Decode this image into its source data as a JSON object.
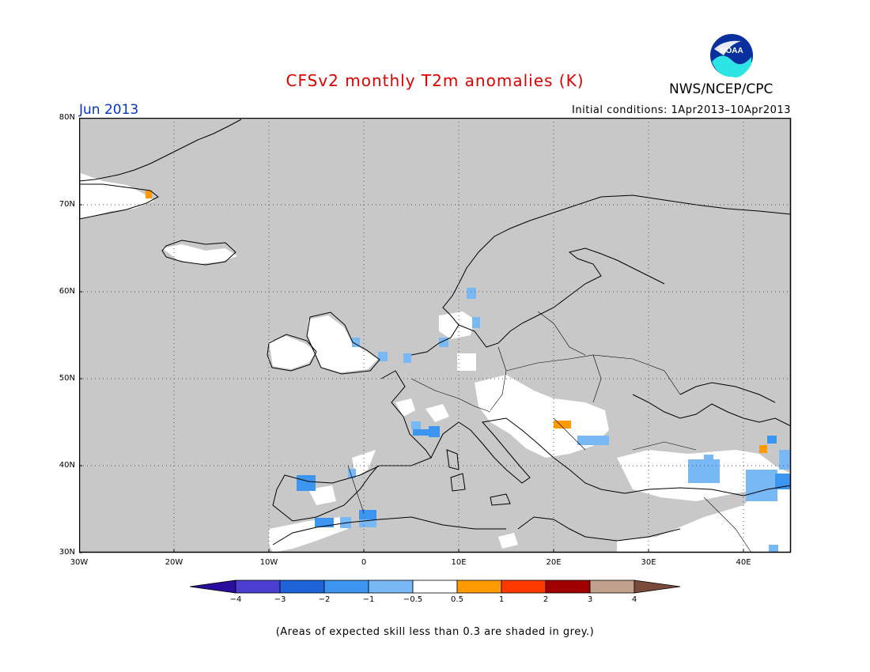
{
  "header": {
    "title": "CFSv2 monthly T2m anomalies (K)",
    "agency": "NWS/NCEP/CPC",
    "logo_text": "NOAA",
    "month": "Jun 2013",
    "initial_conditions": "Initial conditions: 1Apr2013–10Apr2013"
  },
  "map": {
    "lat_labels": [
      "80N",
      "70N",
      "60N",
      "50N",
      "40N",
      "30N"
    ],
    "lon_labels": [
      "30W",
      "20W",
      "10W",
      "0",
      "10E",
      "20E",
      "30E",
      "40E"
    ],
    "extent": {
      "lon_min": -30,
      "lon_max": 45,
      "lat_min": 30,
      "lat_max": 80
    },
    "ocean_color": "#c8c8c8",
    "low_skill_color": "#c8c8c8"
  },
  "colorbar": {
    "labels": [
      "−4",
      "−3",
      "−2",
      "−1",
      "−0.5",
      "0.5",
      "1",
      "2",
      "3",
      "4"
    ],
    "colors": [
      "#2a0d9e",
      "#4a3fd0",
      "#1e64d8",
      "#3c96f0",
      "#78b9f5",
      "#ffffff",
      "#ff9a00",
      "#ff3a00",
      "#a00000",
      "#c2a08e",
      "#7a4a3a"
    ]
  },
  "footnote": "(Areas of expected skill less than 0.3 are shaded in grey.)"
}
